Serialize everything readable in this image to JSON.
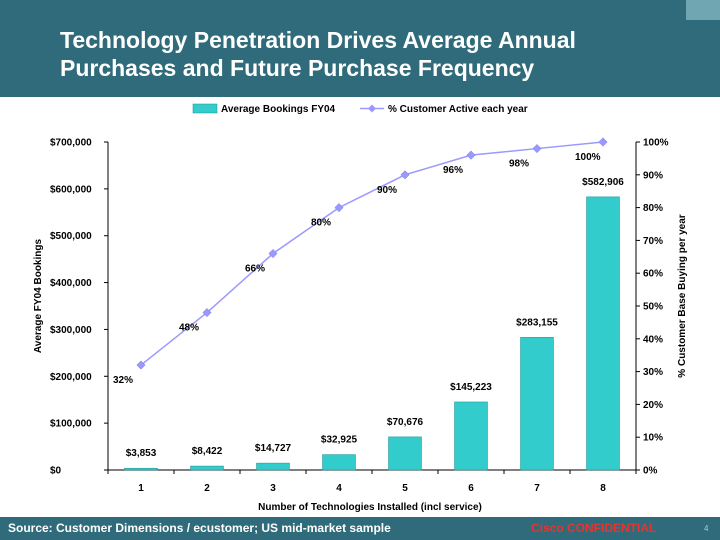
{
  "slide": {
    "title_line1": "Technology Penetration Drives Average Annual",
    "title_line2": "Purchases and Future Purchase Frequency",
    "source": "Source: Customer Dimensions / ecustomer; US mid-market sample",
    "confidential": "Cisco CONFIDENTIAL",
    "page_number": "4"
  },
  "colors": {
    "header_bg": "#2f6b7a",
    "bar": "#33cccc",
    "line": "#9999ff",
    "confidential": "#e8332f"
  },
  "chart_data": {
    "type": "bar",
    "categories": [
      "1",
      "2",
      "3",
      "4",
      "5",
      "6",
      "7",
      "8"
    ],
    "series": [
      {
        "name": "Average Bookings FY04",
        "type": "bar",
        "axis": "left",
        "values": [
          3853,
          8422,
          14727,
          32925,
          70676,
          145223,
          283155,
          582906
        ],
        "labels": [
          "$3,853",
          "$8,422",
          "$14,727",
          "$32,925",
          "$70,676",
          "$145,223",
          "$283,155",
          "$582,906"
        ]
      },
      {
        "name": "% Customer Active each year",
        "type": "line",
        "axis": "right",
        "values": [
          32,
          48,
          66,
          80,
          90,
          96,
          98,
          100
        ],
        "labels": [
          "32%",
          "48%",
          "66%",
          "80%",
          "90%",
          "96%",
          "98%",
          "100%"
        ]
      }
    ],
    "xlabel": "Number of Technologies Installed (incl service)",
    "ylabel": "Average FY04 Bookings",
    "y2label": "% Customer Base Buying per year",
    "ylim": [
      0,
      700000
    ],
    "y2lim": [
      0,
      100
    ],
    "yticks": [
      "$0",
      "$100,000",
      "$200,000",
      "$300,000",
      "$400,000",
      "$500,000",
      "$600,000",
      "$700,000"
    ],
    "y2ticks": [
      "0%",
      "10%",
      "20%",
      "30%",
      "40%",
      "50%",
      "60%",
      "70%",
      "80%",
      "90%",
      "100%"
    ],
    "legend_position": "top",
    "grid": false
  }
}
